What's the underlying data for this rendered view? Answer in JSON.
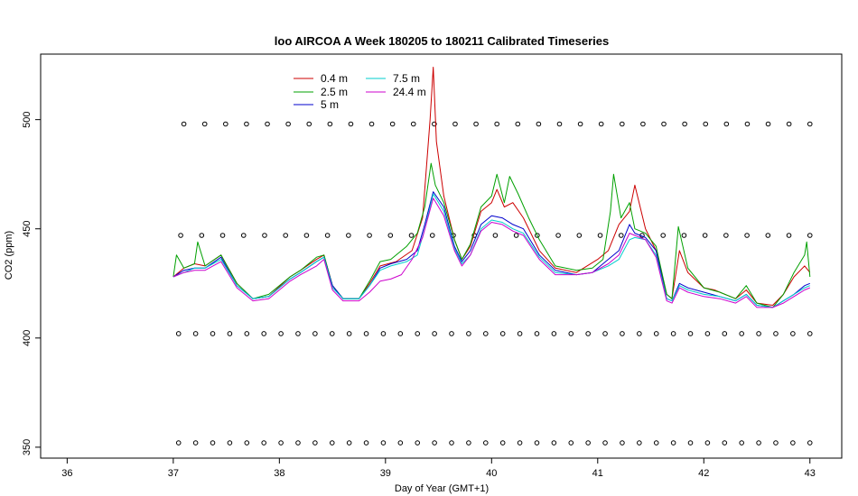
{
  "chart_data": {
    "type": "line",
    "title": "loo AIRCOA A  Week 180205 to 180211  Calibrated Timeseries",
    "xlabel": "Day of Year (GMT+1)",
    "ylabel": "CO2 (ppm)",
    "xlim": [
      35.75,
      43.3
    ],
    "ylim": [
      345,
      530
    ],
    "x_ticks": [
      36,
      37,
      38,
      39,
      40,
      41,
      42,
      43
    ],
    "y_ticks": [
      350,
      400,
      450,
      500
    ],
    "grid": false,
    "legend_placement": "top-left",
    "series": [
      {
        "name": "0.4 m",
        "color": "#cc0000",
        "points": [
          [
            37.0,
            428
          ],
          [
            37.1,
            432
          ],
          [
            37.2,
            434
          ],
          [
            37.3,
            433
          ],
          [
            37.45,
            438
          ],
          [
            37.6,
            425
          ],
          [
            37.75,
            418
          ],
          [
            37.9,
            419
          ],
          [
            38.1,
            428
          ],
          [
            38.2,
            431
          ],
          [
            38.35,
            436
          ],
          [
            38.42,
            438
          ],
          [
            38.5,
            424
          ],
          [
            38.6,
            418
          ],
          [
            38.75,
            418
          ],
          [
            38.85,
            425
          ],
          [
            38.95,
            433
          ],
          [
            39.1,
            435
          ],
          [
            39.25,
            440
          ],
          [
            39.35,
            455
          ],
          [
            39.42,
            500
          ],
          [
            39.45,
            524
          ],
          [
            39.48,
            490
          ],
          [
            39.55,
            465
          ],
          [
            39.65,
            445
          ],
          [
            39.72,
            436
          ],
          [
            39.8,
            442
          ],
          [
            39.9,
            458
          ],
          [
            40.0,
            462
          ],
          [
            40.05,
            468
          ],
          [
            40.12,
            460
          ],
          [
            40.2,
            462
          ],
          [
            40.3,
            455
          ],
          [
            40.45,
            440
          ],
          [
            40.6,
            432
          ],
          [
            40.8,
            430
          ],
          [
            41.0,
            436
          ],
          [
            41.1,
            440
          ],
          [
            41.2,
            452
          ],
          [
            41.3,
            458
          ],
          [
            41.35,
            470
          ],
          [
            41.45,
            450
          ],
          [
            41.55,
            440
          ],
          [
            41.65,
            420
          ],
          [
            41.7,
            418
          ],
          [
            41.77,
            440
          ],
          [
            41.85,
            430
          ],
          [
            42.0,
            423
          ],
          [
            42.1,
            422
          ],
          [
            42.2,
            420
          ],
          [
            42.3,
            418
          ],
          [
            42.4,
            422
          ],
          [
            42.5,
            416
          ],
          [
            42.65,
            415
          ],
          [
            42.75,
            420
          ],
          [
            42.85,
            428
          ],
          [
            42.95,
            433
          ],
          [
            43.0,
            430
          ]
        ]
      },
      {
        "name": "2.5 m",
        "color": "#00a000",
        "points": [
          [
            37.0,
            428
          ],
          [
            37.03,
            438
          ],
          [
            37.1,
            432
          ],
          [
            37.2,
            434
          ],
          [
            37.23,
            444
          ],
          [
            37.3,
            433
          ],
          [
            37.45,
            438
          ],
          [
            37.6,
            425
          ],
          [
            37.75,
            418
          ],
          [
            37.9,
            420
          ],
          [
            38.1,
            428
          ],
          [
            38.2,
            431
          ],
          [
            38.35,
            437
          ],
          [
            38.42,
            438
          ],
          [
            38.5,
            424
          ],
          [
            38.6,
            418
          ],
          [
            38.75,
            418
          ],
          [
            38.85,
            426
          ],
          [
            38.95,
            435
          ],
          [
            39.05,
            436
          ],
          [
            39.2,
            442
          ],
          [
            39.3,
            448
          ],
          [
            39.37,
            460
          ],
          [
            39.43,
            480
          ],
          [
            39.47,
            470
          ],
          [
            39.55,
            462
          ],
          [
            39.65,
            445
          ],
          [
            39.72,
            436
          ],
          [
            39.8,
            443
          ],
          [
            39.9,
            460
          ],
          [
            40.0,
            465
          ],
          [
            40.05,
            475
          ],
          [
            40.12,
            462
          ],
          [
            40.17,
            474
          ],
          [
            40.25,
            466
          ],
          [
            40.35,
            455
          ],
          [
            40.45,
            445
          ],
          [
            40.6,
            433
          ],
          [
            40.8,
            431
          ],
          [
            40.95,
            432
          ],
          [
            41.05,
            436
          ],
          [
            41.12,
            458
          ],
          [
            41.15,
            475
          ],
          [
            41.22,
            455
          ],
          [
            41.3,
            462
          ],
          [
            41.35,
            450
          ],
          [
            41.45,
            448
          ],
          [
            41.55,
            442
          ],
          [
            41.65,
            420
          ],
          [
            41.7,
            418
          ],
          [
            41.76,
            451
          ],
          [
            41.85,
            432
          ],
          [
            42.0,
            423
          ],
          [
            42.15,
            421
          ],
          [
            42.3,
            418
          ],
          [
            42.4,
            424
          ],
          [
            42.5,
            416
          ],
          [
            42.65,
            414
          ],
          [
            42.75,
            420
          ],
          [
            42.85,
            430
          ],
          [
            42.95,
            438
          ],
          [
            42.97,
            444
          ],
          [
            43.0,
            428
          ]
        ]
      },
      {
        "name": "5 m",
        "color": "#0000cc",
        "points": [
          [
            37.0,
            428
          ],
          [
            37.1,
            431
          ],
          [
            37.2,
            432
          ],
          [
            37.3,
            432
          ],
          [
            37.45,
            437
          ],
          [
            37.6,
            424
          ],
          [
            37.75,
            418
          ],
          [
            37.9,
            419
          ],
          [
            38.1,
            427
          ],
          [
            38.2,
            430
          ],
          [
            38.35,
            435
          ],
          [
            38.42,
            437
          ],
          [
            38.5,
            424
          ],
          [
            38.6,
            418
          ],
          [
            38.75,
            418
          ],
          [
            38.85,
            424
          ],
          [
            38.95,
            432
          ],
          [
            39.05,
            434
          ],
          [
            39.2,
            436
          ],
          [
            39.3,
            440
          ],
          [
            39.37,
            452
          ],
          [
            39.45,
            467
          ],
          [
            39.55,
            460
          ],
          [
            39.65,
            442
          ],
          [
            39.72,
            435
          ],
          [
            39.8,
            440
          ],
          [
            39.9,
            452
          ],
          [
            40.0,
            456
          ],
          [
            40.1,
            455
          ],
          [
            40.2,
            452
          ],
          [
            40.3,
            450
          ],
          [
            40.45,
            438
          ],
          [
            40.6,
            431
          ],
          [
            40.8,
            429
          ],
          [
            40.95,
            430
          ],
          [
            41.1,
            436
          ],
          [
            41.2,
            440
          ],
          [
            41.3,
            452
          ],
          [
            41.35,
            448
          ],
          [
            41.45,
            446
          ],
          [
            41.55,
            440
          ],
          [
            41.65,
            418
          ],
          [
            41.7,
            417
          ],
          [
            41.77,
            425
          ],
          [
            41.85,
            423
          ],
          [
            42.0,
            421
          ],
          [
            42.15,
            419
          ],
          [
            42.3,
            417
          ],
          [
            42.4,
            420
          ],
          [
            42.5,
            415
          ],
          [
            42.65,
            414
          ],
          [
            42.75,
            417
          ],
          [
            42.85,
            420
          ],
          [
            42.95,
            424
          ],
          [
            43.0,
            425
          ]
        ]
      },
      {
        "name": "7.5 m",
        "color": "#00cccc",
        "points": [
          [
            37.0,
            428
          ],
          [
            37.1,
            430
          ],
          [
            37.2,
            432
          ],
          [
            37.3,
            432
          ],
          [
            37.45,
            436
          ],
          [
            37.6,
            424
          ],
          [
            37.75,
            418
          ],
          [
            37.9,
            419
          ],
          [
            38.1,
            427
          ],
          [
            38.2,
            430
          ],
          [
            38.35,
            435
          ],
          [
            38.42,
            437
          ],
          [
            38.5,
            423
          ],
          [
            38.6,
            418
          ],
          [
            38.75,
            418
          ],
          [
            38.85,
            424
          ],
          [
            38.95,
            431
          ],
          [
            39.05,
            433
          ],
          [
            39.2,
            435
          ],
          [
            39.3,
            438
          ],
          [
            39.37,
            450
          ],
          [
            39.45,
            466
          ],
          [
            39.55,
            458
          ],
          [
            39.65,
            441
          ],
          [
            39.72,
            434
          ],
          [
            39.8,
            438
          ],
          [
            39.9,
            450
          ],
          [
            40.0,
            454
          ],
          [
            40.1,
            453
          ],
          [
            40.2,
            450
          ],
          [
            40.3,
            448
          ],
          [
            40.45,
            437
          ],
          [
            40.6,
            430
          ],
          [
            40.8,
            429
          ],
          [
            40.95,
            430
          ],
          [
            41.1,
            433
          ],
          [
            41.2,
            436
          ],
          [
            41.3,
            445
          ],
          [
            41.35,
            446
          ],
          [
            41.45,
            445
          ],
          [
            41.55,
            438
          ],
          [
            41.65,
            418
          ],
          [
            41.7,
            417
          ],
          [
            41.77,
            424
          ],
          [
            41.85,
            422
          ],
          [
            42.0,
            420
          ],
          [
            42.15,
            419
          ],
          [
            42.3,
            417
          ],
          [
            42.4,
            420
          ],
          [
            42.5,
            415
          ],
          [
            42.65,
            414
          ],
          [
            42.75,
            417
          ],
          [
            42.85,
            420
          ],
          [
            42.95,
            423
          ],
          [
            43.0,
            424
          ]
        ]
      },
      {
        "name": "24.4 m",
        "color": "#cc00cc",
        "points": [
          [
            37.0,
            428
          ],
          [
            37.1,
            430
          ],
          [
            37.2,
            431
          ],
          [
            37.3,
            431
          ],
          [
            37.45,
            435
          ],
          [
            37.6,
            423
          ],
          [
            37.75,
            417
          ],
          [
            37.9,
            418
          ],
          [
            38.1,
            426
          ],
          [
            38.2,
            429
          ],
          [
            38.35,
            433
          ],
          [
            38.42,
            436
          ],
          [
            38.5,
            422
          ],
          [
            38.6,
            417
          ],
          [
            38.75,
            417
          ],
          [
            38.85,
            421
          ],
          [
            38.95,
            426
          ],
          [
            39.05,
            427
          ],
          [
            39.15,
            429
          ],
          [
            39.25,
            436
          ],
          [
            39.35,
            446
          ],
          [
            39.45,
            464
          ],
          [
            39.55,
            456
          ],
          [
            39.65,
            440
          ],
          [
            39.72,
            433
          ],
          [
            39.8,
            438
          ],
          [
            39.9,
            449
          ],
          [
            40.0,
            453
          ],
          [
            40.1,
            452
          ],
          [
            40.2,
            449
          ],
          [
            40.3,
            447
          ],
          [
            40.45,
            436
          ],
          [
            40.6,
            429
          ],
          [
            40.8,
            429
          ],
          [
            40.95,
            430
          ],
          [
            41.1,
            434
          ],
          [
            41.2,
            438
          ],
          [
            41.3,
            448
          ],
          [
            41.35,
            447
          ],
          [
            41.45,
            445
          ],
          [
            41.55,
            437
          ],
          [
            41.65,
            417
          ],
          [
            41.7,
            416
          ],
          [
            41.77,
            423
          ],
          [
            41.85,
            421
          ],
          [
            42.0,
            419
          ],
          [
            42.15,
            418
          ],
          [
            42.3,
            416
          ],
          [
            42.4,
            419
          ],
          [
            42.5,
            414
          ],
          [
            42.65,
            414
          ],
          [
            42.75,
            416
          ],
          [
            42.85,
            419
          ],
          [
            42.95,
            422
          ],
          [
            43.0,
            423
          ]
        ]
      }
    ],
    "marker_rows": [
      {
        "y": 498,
        "x_start": 37.1,
        "x_end": 43.0,
        "count": 31
      },
      {
        "y": 447,
        "x_start": 37.07,
        "x_end": 43.0,
        "count": 31
      },
      {
        "y": 402,
        "x_start": 37.05,
        "x_end": 43.0,
        "count": 38
      },
      {
        "y": 352,
        "x_start": 37.05,
        "x_end": 43.0,
        "count": 38
      }
    ]
  }
}
